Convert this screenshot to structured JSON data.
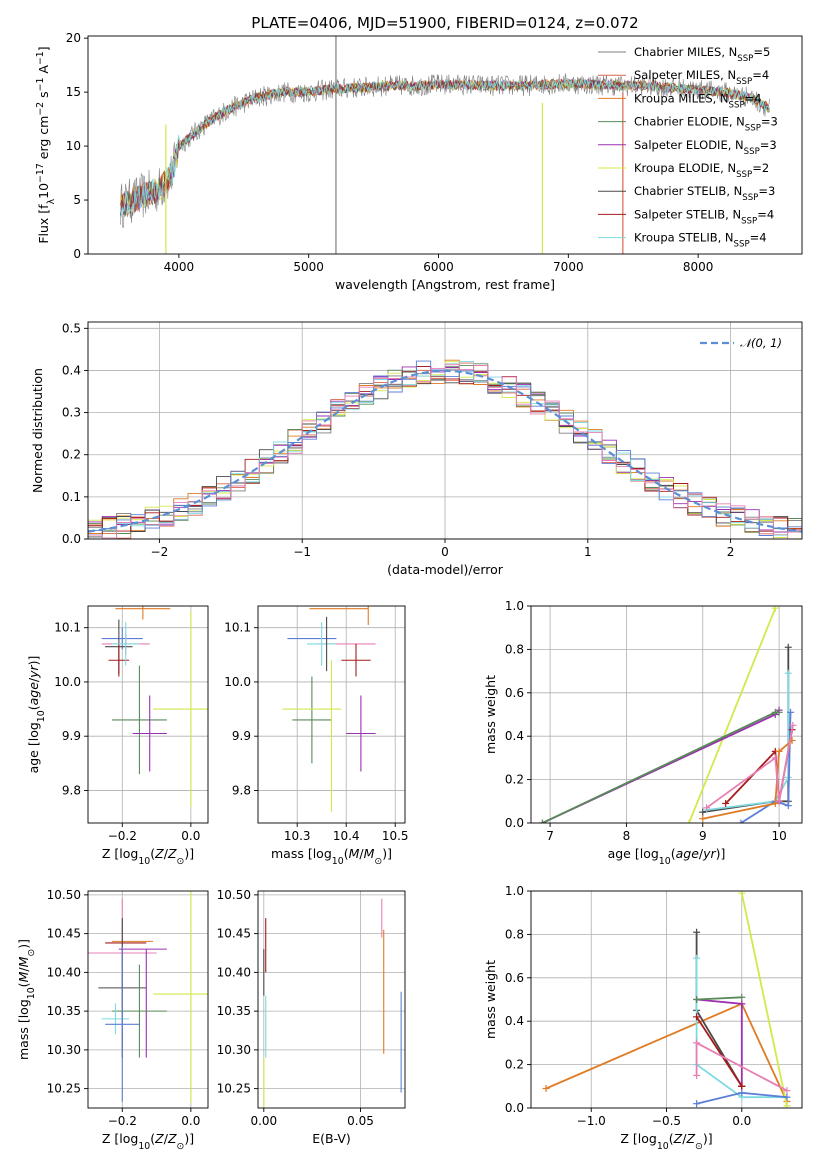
{
  "colors": {
    "chabrier_miles": "#7f7f7f",
    "salpeter_miles": "#d9664e",
    "kroupa_miles": "#e07b24",
    "chabrier_elodie": "#5a8a5a",
    "salpeter_elodie": "#9a31b0",
    "kroupa_elodie": "#d4e84a",
    "chabrier_stelib": "#4a4a4a",
    "salpeter_stelib": "#a61c1c",
    "kroupa_stelib": "#7fd9e0",
    "blue": "#5b7fd6",
    "pink": "#e87fb4",
    "gauss": "#5b8fd6"
  },
  "chart_data": [
    {
      "id": "spectrum",
      "type": "line",
      "title": "PLATE=0406, MJD=51900, FIBERID=0124, z=0.072",
      "xlabel": "wavelength [Angstrom, rest frame]",
      "ylabel": "Flux [f_λ 10^-17 erg cm^-2 s^-1 A^-1]",
      "xlim": [
        3300,
        8800
      ],
      "ylim": [
        0,
        20.2
      ],
      "xticks": [
        4000,
        5000,
        6000,
        7000,
        8000
      ],
      "yticks": [
        0,
        5,
        10,
        15,
        20
      ],
      "legend_position": "top-right",
      "legend": [
        {
          "name": "Chabrier MILES, N_SSP=5",
          "color": "chabrier_miles"
        },
        {
          "name": "Salpeter MILES, N_SSP=4",
          "color": "salpeter_miles"
        },
        {
          "name": "Kroupa MILES, N_SSP=4",
          "color": "kroupa_miles"
        },
        {
          "name": "Chabrier ELODIE, N_SSP=3",
          "color": "chabrier_elodie"
        },
        {
          "name": "Salpeter ELODIE, N_SSP=3",
          "color": "salpeter_elodie"
        },
        {
          "name": "Kroupa ELODIE, N_SSP=2",
          "color": "kroupa_elodie"
        },
        {
          "name": "Chabrier STELIB, N_SSP=3",
          "color": "chabrier_stelib"
        },
        {
          "name": "Salpeter STELIB, N_SSP=4",
          "color": "salpeter_stelib"
        },
        {
          "name": "Kroupa STELIB, N_SSP=4",
          "color": "kroupa_stelib"
        }
      ],
      "continuum": {
        "x": [
          3550,
          3650,
          3750,
          3850,
          3950,
          4000,
          4100,
          4200,
          4300,
          4400,
          4500,
          4600,
          4800,
          5000,
          5200,
          5400,
          5600,
          5800,
          6000,
          6200,
          6400,
          6600,
          6800,
          7000,
          7200,
          7400,
          7600,
          7800,
          8000,
          8200,
          8400,
          8550
        ],
        "y": [
          4.5,
          5.0,
          5.5,
          6.0,
          7.5,
          10.0,
          11.0,
          12.0,
          12.8,
          13.5,
          14.0,
          14.5,
          15.0,
          15.0,
          15.3,
          15.4,
          15.6,
          15.6,
          15.7,
          15.7,
          15.6,
          15.6,
          15.7,
          15.8,
          15.7,
          15.6,
          15.6,
          15.4,
          15.2,
          15.0,
          14.5,
          13.5
        ]
      },
      "spikes": [
        {
          "x": 3900,
          "y_min": 0,
          "y_max": 12,
          "color": "kroupa_elodie"
        },
        {
          "x": 5210,
          "y_min": 0,
          "y_max": 20.2,
          "color": "chabrier_miles"
        },
        {
          "x": 6800,
          "y_min": 0,
          "y_max": 14,
          "color": "kroupa_elodie"
        },
        {
          "x": 7420,
          "y_min": 0,
          "y_max": 15,
          "color": "salpeter_miles"
        }
      ]
    },
    {
      "id": "residuals",
      "type": "area",
      "xlabel": "(data-model)/error",
      "ylabel": "Normed distribution",
      "xlim": [
        -2.5,
        2.5
      ],
      "ylim": [
        0,
        0.515
      ],
      "xticks": [
        -2,
        -1,
        0,
        1,
        2
      ],
      "yticks": [
        0.0,
        0.1,
        0.2,
        0.3,
        0.4,
        0.5
      ],
      "legend_position": "top-right",
      "legend": [
        {
          "name": "𝒩(0, 1)",
          "color": "gauss",
          "style": "dashed"
        }
      ],
      "bin_width": 0.1
    },
    {
      "id": "age_vs_Z",
      "type": "scatter",
      "xlabel": "Z [log10(Z/Z⊙)]",
      "ylabel": "age  [log10(age/yr)]",
      "xlim": [
        -0.3,
        0.05
      ],
      "ylim": [
        9.74,
        10.14
      ],
      "xticks": [
        -0.2,
        0.0
      ],
      "yticks": [
        9.8,
        9.9,
        10.0,
        10.1
      ],
      "points": [
        {
          "x": -0.14,
          "y": 10.135,
          "xerr": 0.08,
          "yerr": 0.02,
          "color": "kroupa_miles"
        },
        {
          "x": -0.2,
          "y": 10.08,
          "xerr": 0.06,
          "yerr": 0.02,
          "color": "blue"
        },
        {
          "x": -0.19,
          "y": 10.07,
          "xerr": 0.07,
          "yerr": 0.02,
          "color": "pink"
        },
        {
          "x": -0.21,
          "y": 10.065,
          "xerr": 0.04,
          "yerr": 0.05,
          "color": "chabrier_stelib"
        },
        {
          "x": -0.21,
          "y": 10.04,
          "xerr": 0.03,
          "yerr": 0.03,
          "color": "salpeter_stelib"
        },
        {
          "x": -0.19,
          "y": 10.07,
          "xerr": 0.04,
          "yerr": 0.04,
          "color": "kroupa_stelib"
        },
        {
          "x": -0.15,
          "y": 9.93,
          "xerr": 0.08,
          "yerr": 0.1,
          "color": "chabrier_elodie"
        },
        {
          "x": -0.12,
          "y": 9.905,
          "xerr": 0.05,
          "yerr": 0.07,
          "color": "salpeter_elodie"
        },
        {
          "x": -0.03,
          "y": 9.95,
          "xerr": 0.08,
          "yerr": 0.0,
          "color": "kroupa_elodie"
        },
        {
          "x": 0.0,
          "y": 9.95,
          "xerr": 0.0,
          "yerr": 0.18,
          "color": "kroupa_elodie"
        }
      ]
    },
    {
      "id": "age_vs_mass",
      "type": "scatter",
      "xlabel": "mass [log10(M/M⊙)]",
      "ylabel": "",
      "xlim": [
        10.22,
        10.52
      ],
      "ylim": [
        9.74,
        10.14
      ],
      "xticks": [
        10.3,
        10.4,
        10.5
      ],
      "yticks": [
        9.8,
        9.9,
        10.0,
        10.1
      ],
      "points": [
        {
          "x": 10.385,
          "y": 10.135,
          "xerr": 0.06,
          "yerr": 0.0,
          "color": "kroupa_miles"
        },
        {
          "x": 10.33,
          "y": 10.08,
          "xerr": 0.05,
          "yerr": 0.0,
          "color": "blue"
        },
        {
          "x": 10.4,
          "y": 10.07,
          "xerr": 0.06,
          "yerr": 0.0,
          "color": "pink"
        },
        {
          "x": 10.445,
          "y": 10.135,
          "xerr": 0.0,
          "yerr": 0.03,
          "color": "kroupa_miles"
        },
        {
          "x": 10.42,
          "y": 10.04,
          "xerr": 0.03,
          "yerr": 0.03,
          "color": "salpeter_stelib"
        },
        {
          "x": 10.35,
          "y": 10.07,
          "xerr": 0.03,
          "yerr": 0.04,
          "color": "kroupa_stelib"
        },
        {
          "x": 10.36,
          "y": 10.07,
          "xerr": 0.0,
          "yerr": 0.05,
          "color": "chabrier_stelib"
        },
        {
          "x": 10.33,
          "y": 9.93,
          "xerr": 0.04,
          "yerr": 0.08,
          "color": "chabrier_elodie"
        },
        {
          "x": 10.43,
          "y": 9.905,
          "xerr": 0.03,
          "yerr": 0.07,
          "color": "salpeter_elodie"
        },
        {
          "x": 10.33,
          "y": 9.95,
          "xerr": 0.06,
          "yerr": 0.0,
          "color": "kroupa_elodie"
        },
        {
          "x": 10.37,
          "y": 9.9,
          "xerr": 0.0,
          "yerr": 0.14,
          "color": "kroupa_elodie"
        }
      ]
    },
    {
      "id": "weight_vs_age",
      "type": "line",
      "xlabel": "age  [log10(age/yr)]",
      "ylabel": "mass weight",
      "xlim": [
        6.75,
        10.3
      ],
      "ylim": [
        0,
        1.0
      ],
      "xticks": [
        7,
        8,
        9,
        10
      ],
      "yticks": [
        0.0,
        0.2,
        0.4,
        0.6,
        0.8,
        1.0
      ],
      "series": [
        {
          "color": "kroupa_elodie",
          "x": [
            8.82,
            9.95
          ],
          "y": [
            0.0,
            0.99
          ]
        },
        {
          "color": "chabrier_stelib",
          "x": [
            9.0,
            9.95,
            10.12,
            10.12
          ],
          "y": [
            0.05,
            0.1,
            0.1,
            0.81
          ]
        },
        {
          "color": "kroupa_stelib",
          "x": [
            9.05,
            9.95,
            10.12,
            10.12
          ],
          "y": [
            0.06,
            0.1,
            0.21,
            0.69
          ]
        },
        {
          "color": "blue",
          "x": [
            9.5,
            9.95,
            10.12,
            10.15
          ],
          "y": [
            0.0,
            0.1,
            0.08,
            0.51
          ]
        },
        {
          "color": "salpeter_elodie",
          "x": [
            6.9,
            9.95,
            10.0
          ],
          "y": [
            0.0,
            0.5,
            0.52
          ]
        },
        {
          "color": "chabrier_elodie",
          "x": [
            6.9,
            9.95,
            10.0
          ],
          "y": [
            0.0,
            0.51,
            0.51
          ]
        },
        {
          "color": "salpeter_stelib",
          "x": [
            9.3,
            9.95,
            10.0,
            10.17
          ],
          "y": [
            0.09,
            0.33,
            0.1,
            0.43
          ]
        },
        {
          "color": "kroupa_miles",
          "x": [
            9.0,
            9.95,
            10.0,
            10.17
          ],
          "y": [
            0.02,
            0.09,
            0.33,
            0.38
          ]
        },
        {
          "color": "pink",
          "x": [
            9.05,
            9.95,
            10.0,
            10.18
          ],
          "y": [
            0.07,
            0.3,
            0.1,
            0.45
          ]
        }
      ]
    },
    {
      "id": "mass_vs_Z",
      "type": "scatter",
      "xlabel": "Z [log10(Z/Z⊙)]",
      "ylabel": "mass [log10(M/M⊙)]",
      "xlim": [
        -0.3,
        0.05
      ],
      "ylim": [
        10.225,
        10.505
      ],
      "xticks": [
        -0.2,
        0.0
      ],
      "yticks": [
        10.25,
        10.3,
        10.35,
        10.4,
        10.45,
        10.5
      ],
      "points": [
        {
          "x": -0.2,
          "y": 10.425,
          "xerr": 0.1,
          "yerr": 0.07,
          "color": "pink"
        },
        {
          "x": -0.17,
          "y": 10.44,
          "xerr": 0.06,
          "yerr": 0.0,
          "color": "kroupa_miles"
        },
        {
          "x": -0.19,
          "y": 10.438,
          "xerr": 0.06,
          "yerr": 0.0,
          "color": "salpeter_stelib"
        },
        {
          "x": -0.2,
          "y": 10.38,
          "xerr": 0.07,
          "yerr": 0.09,
          "color": "chabrier_stelib"
        },
        {
          "x": -0.14,
          "y": 10.43,
          "xerr": 0.07,
          "yerr": 0.0,
          "color": "salpeter_elodie"
        },
        {
          "x": -0.13,
          "y": 10.36,
          "xerr": 0.0,
          "yerr": 0.07,
          "color": "salpeter_elodie"
        },
        {
          "x": -0.15,
          "y": 10.35,
          "xerr": 0.08,
          "yerr": 0.06,
          "color": "chabrier_elodie"
        },
        {
          "x": -0.22,
          "y": 10.34,
          "xerr": 0.04,
          "yerr": 0.02,
          "color": "kroupa_stelib"
        },
        {
          "x": -0.2,
          "y": 10.333,
          "xerr": 0.05,
          "yerr": 0.1,
          "color": "blue"
        },
        {
          "x": -0.03,
          "y": 10.372,
          "xerr": 0.08,
          "yerr": 0.0,
          "color": "kroupa_elodie"
        },
        {
          "x": 0.0,
          "y": 10.372,
          "xerr": 0.0,
          "yerr": 0.14,
          "color": "kroupa_elodie"
        }
      ]
    },
    {
      "id": "mass_vs_ebv",
      "type": "scatter",
      "xlabel": "E(B-V)",
      "ylabel": "",
      "xlim": [
        -0.003,
        0.073
      ],
      "ylim": [
        10.225,
        10.505
      ],
      "xticks": [
        0.0,
        0.05
      ],
      "yticks": [
        10.25,
        10.3,
        10.35,
        10.4,
        10.45,
        10.5
      ],
      "points": [
        {
          "x": 0.001,
          "y": 10.435,
          "xerr": 0.0,
          "yerr": 0.035,
          "color": "salpeter_stelib"
        },
        {
          "x": 0.0,
          "y": 10.4,
          "xerr": 0.0,
          "yerr": 0.03,
          "color": "chabrier_stelib"
        },
        {
          "x": 0.001,
          "y": 10.33,
          "xerr": 0.0,
          "yerr": 0.04,
          "color": "kroupa_stelib"
        },
        {
          "x": 0.0,
          "y": 10.25,
          "xerr": 0.0,
          "yerr": 0.04,
          "color": "kroupa_elodie"
        },
        {
          "x": 0.061,
          "y": 10.47,
          "xerr": 0.0,
          "yerr": 0.025,
          "color": "pink"
        },
        {
          "x": 0.062,
          "y": 10.375,
          "xerr": 0.0,
          "yerr": 0.08,
          "color": "kroupa_miles"
        },
        {
          "x": 0.071,
          "y": 10.31,
          "xerr": 0.0,
          "yerr": 0.065,
          "color": "blue"
        }
      ]
    },
    {
      "id": "weight_vs_Z",
      "type": "line",
      "xlabel": "Z [log10(Z/Z⊙)]",
      "ylabel": "mass weight",
      "xlim": [
        -1.4,
        0.4
      ],
      "ylim": [
        0,
        1.0
      ],
      "xticks": [
        -1.0,
        -0.5,
        0.0
      ],
      "yticks": [
        0.0,
        0.2,
        0.4,
        0.6,
        0.8,
        1.0
      ],
      "series": [
        {
          "color": "kroupa_miles",
          "x": [
            -1.3,
            0.0,
            0.3
          ],
          "y": [
            0.09,
            0.48,
            0.03
          ]
        },
        {
          "color": "chabrier_stelib",
          "x": [
            -0.3,
            -0.3,
            0.0
          ],
          "y": [
            0.81,
            0.45,
            0.1
          ]
        },
        {
          "color": "kroupa_stelib",
          "x": [
            -0.3,
            -0.3,
            0.0,
            0.3
          ],
          "y": [
            0.69,
            0.2,
            0.05,
            0.05
          ]
        },
        {
          "color": "salpeter_elodie",
          "x": [
            -0.3,
            0.0,
            0.0
          ],
          "y": [
            0.5,
            0.48,
            0.1
          ]
        },
        {
          "color": "chabrier_elodie",
          "x": [
            -0.3,
            0.0
          ],
          "y": [
            0.5,
            0.51
          ]
        },
        {
          "color": "salpeter_stelib",
          "x": [
            -0.3,
            0.0,
            0.0
          ],
          "y": [
            0.42,
            0.1,
            0.1
          ]
        },
        {
          "color": "kroupa_elodie",
          "x": [
            0.0,
            0.3
          ],
          "y": [
            0.99,
            0.01
          ]
        },
        {
          "color": "blue",
          "x": [
            -0.3,
            0.0,
            0.3
          ],
          "y": [
            0.02,
            0.07,
            0.05
          ]
        },
        {
          "color": "pink",
          "x": [
            -0.3,
            -0.3,
            0.3
          ],
          "y": [
            0.15,
            0.3,
            0.08
          ]
        }
      ]
    }
  ]
}
